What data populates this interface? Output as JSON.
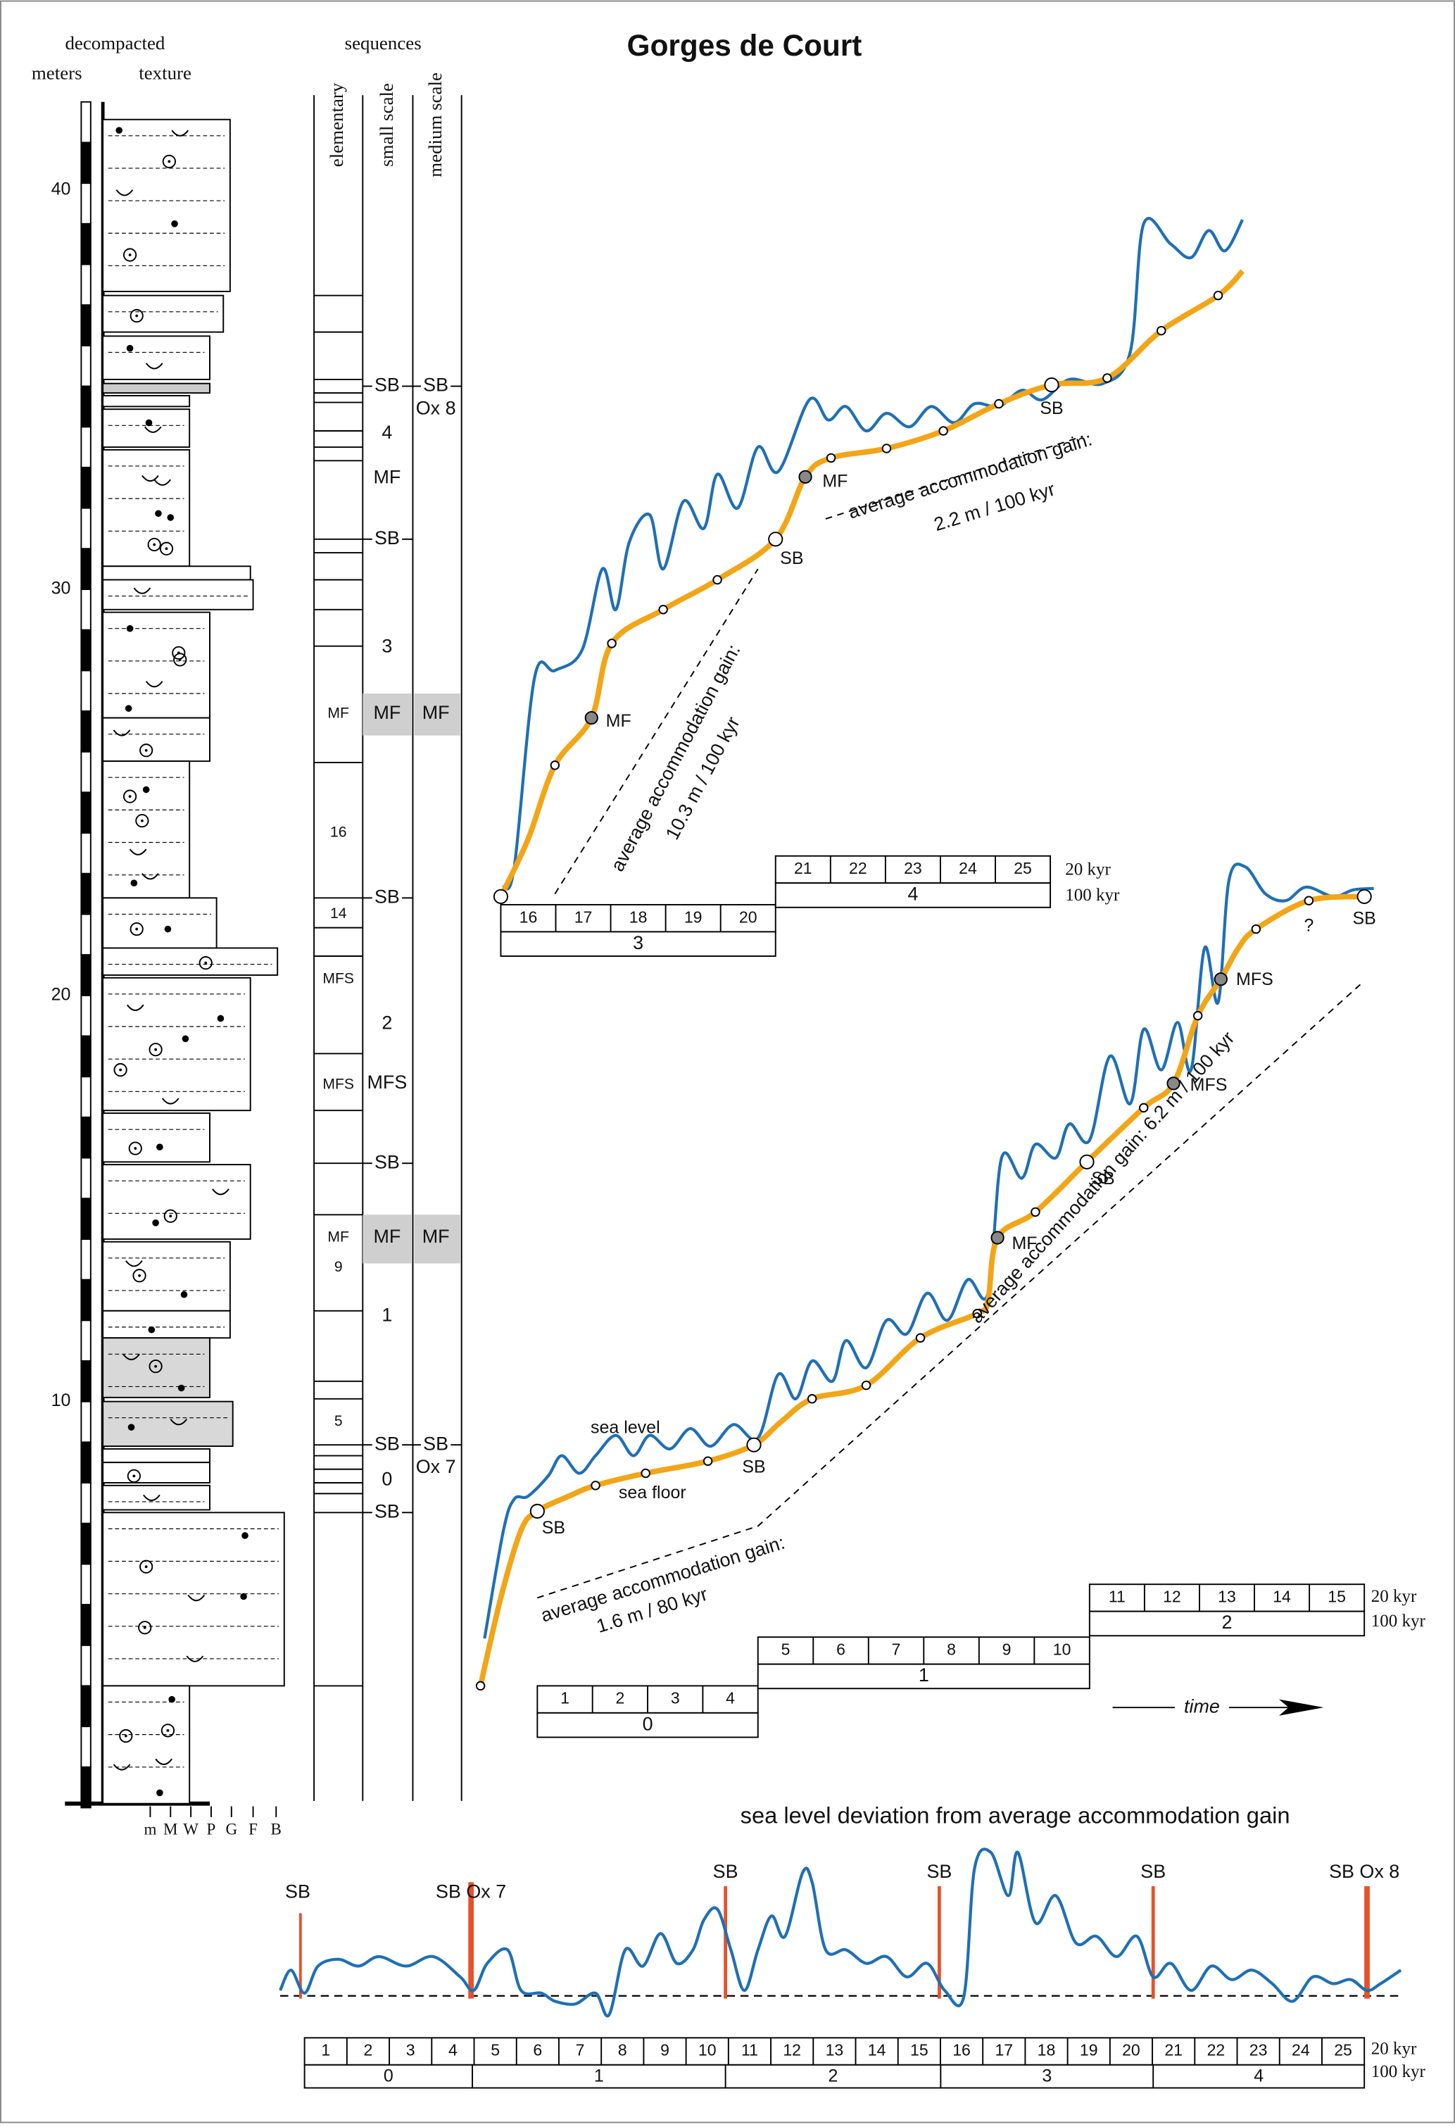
{
  "header": {
    "title": "Gorges de Court",
    "decompacted": "decompacted",
    "meters": "meters",
    "texture": "texture",
    "sequences": "sequences",
    "columns": [
      "elementary",
      "small scale",
      "medium scale"
    ]
  },
  "log": {
    "depths": [
      "40",
      "30",
      "20",
      "10"
    ],
    "textures": [
      "m",
      "M",
      "W",
      "P",
      "G",
      "F",
      "B"
    ]
  },
  "sequence_labels": {
    "small": [
      "SB",
      "4",
      "MF",
      "SB",
      "3",
      "MF",
      "SB",
      "2",
      "MFS",
      "SB",
      "MF",
      "1",
      "SB",
      "0",
      "SB"
    ],
    "medium": [
      "SB",
      "Ox 8",
      "MF",
      "MF",
      "SB",
      "Ox 7"
    ],
    "elementary": [
      "MF",
      "16",
      "14",
      "MFS",
      "MFS",
      "MF",
      "9",
      "5"
    ]
  },
  "upper_panel": {
    "labels": [
      "MF",
      "SB",
      "SB",
      "MF"
    ],
    "gain_a": "average accommodation gain:",
    "gain_a_value": "10.3 m / 100 kyr",
    "gain_b": "average accommodation gain:",
    "gain_b_value": "2.2 m / 100 kyr",
    "timeline": {
      "kyr20": [
        16,
        17,
        18,
        19,
        20,
        21,
        22,
        23,
        24,
        25
      ],
      "kyr100": [
        3,
        4
      ],
      "unit20": "20 kyr",
      "unit100": "100 kyr"
    }
  },
  "lower_panel": {
    "labels": [
      "sea level",
      "sea floor",
      "SB",
      "SB",
      "MF",
      "SB",
      "MFS",
      "MFS",
      "?",
      "SB"
    ],
    "gain_a": "average accommodation gain:",
    "gain_a_value": "1.6 m / 80 kyr",
    "gain_b": "average accommodation gain:  6.2 m / 100 kyr",
    "time": "time",
    "timeline": {
      "kyr20": [
        1,
        2,
        3,
        4,
        5,
        6,
        7,
        8,
        9,
        10,
        11,
        12,
        13,
        14,
        15
      ],
      "kyr100": [
        0,
        1,
        2
      ],
      "unit20": "20 kyr",
      "unit100": "100 kyr"
    }
  },
  "deviation_panel": {
    "title": "sea level deviation from average accommodation gain",
    "boundaries": [
      "SB",
      "SB Ox 7",
      "SB",
      "SB",
      "SB",
      "SB Ox 8"
    ],
    "timeline": {
      "kyr20": [
        1,
        2,
        3,
        4,
        5,
        6,
        7,
        8,
        9,
        10,
        11,
        12,
        13,
        14,
        15,
        16,
        17,
        18,
        19,
        20,
        21,
        22,
        23,
        24,
        25
      ],
      "kyr100": [
        0,
        1,
        2,
        3,
        4
      ],
      "unit20": "20 kyr",
      "unit100": "100 kyr"
    }
  }
}
